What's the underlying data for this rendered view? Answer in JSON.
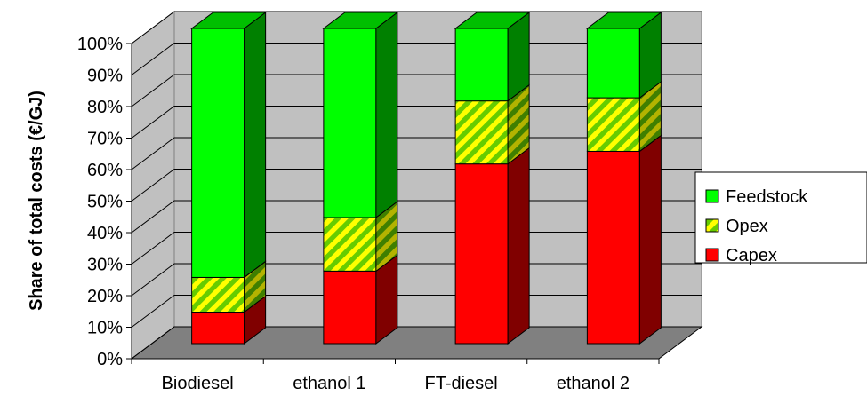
{
  "chart_data": {
    "type": "bar",
    "stacked": true,
    "percent_stacked": true,
    "three_d": true,
    "title": "",
    "xlabel": "",
    "ylabel": "Share of total costs (€/GJ)",
    "ylim": [
      0,
      100
    ],
    "yticks": [
      "0%",
      "10%",
      "20%",
      "30%",
      "40%",
      "50%",
      "60%",
      "70%",
      "80%",
      "90%",
      "100%"
    ],
    "categories": [
      "Biodiesel",
      "ethanol 1",
      "FT-diesel",
      "ethanol 2"
    ],
    "series": [
      {
        "name": "Capex",
        "values": [
          10,
          23,
          57,
          61
        ],
        "color": "#ff0000",
        "pattern": "solid"
      },
      {
        "name": "Opex",
        "values": [
          11,
          17,
          20,
          17
        ],
        "color": "#ffff00",
        "pattern": "diagonal-stripes-green-yellow"
      },
      {
        "name": "Feedstock",
        "values": [
          79,
          60,
          23,
          22
        ],
        "color": "#00ff00",
        "pattern": "solid"
      }
    ],
    "legend": {
      "position": "right",
      "order": [
        "Feedstock",
        "Opex",
        "Capex"
      ]
    },
    "grid": true,
    "colors": {
      "wall": "#c0c0c0",
      "floor": "#808080",
      "gridline": "#000000"
    }
  }
}
